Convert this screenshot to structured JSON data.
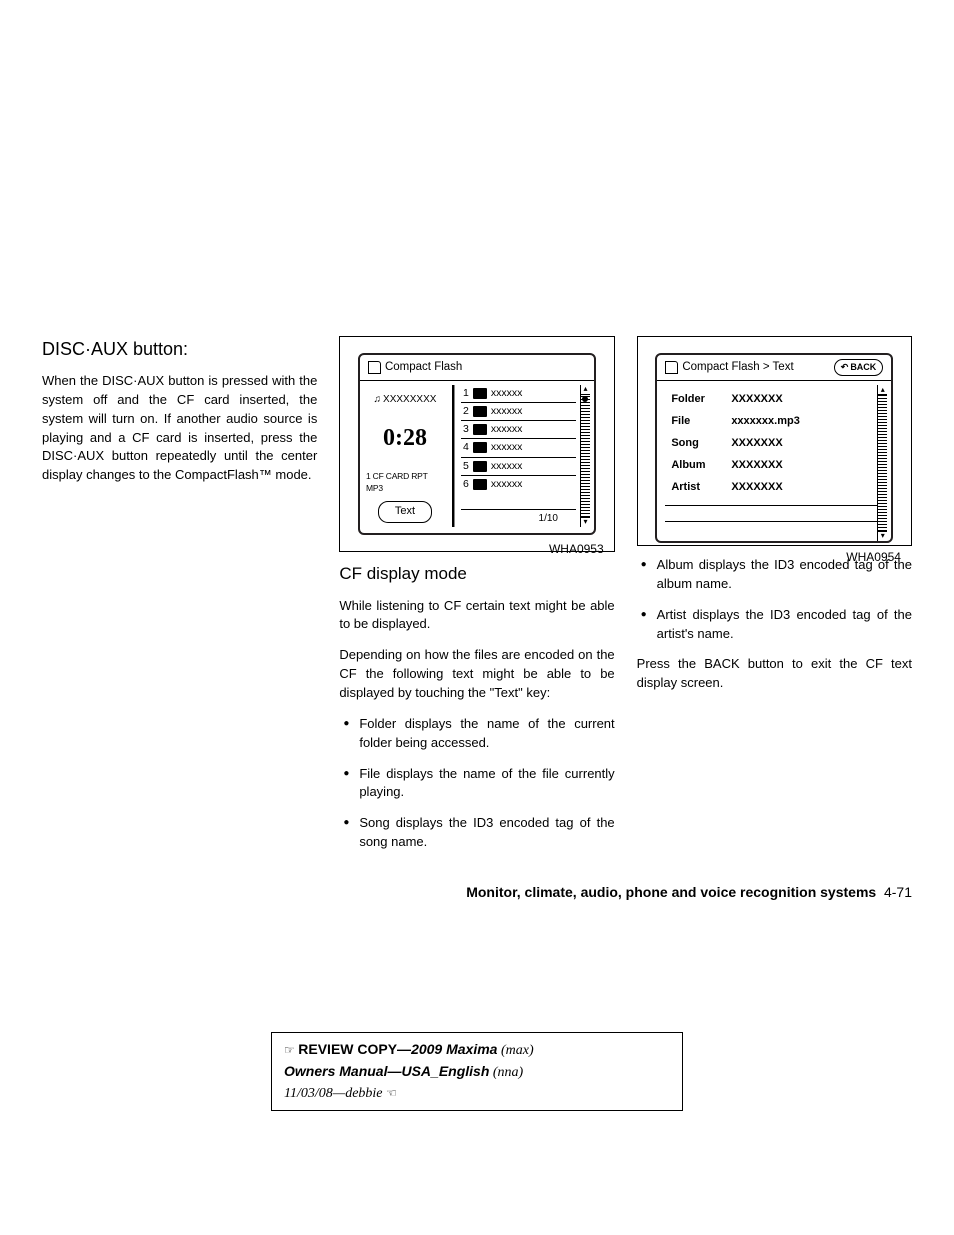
{
  "col1": {
    "heading": "DISC·AUX button:",
    "paragraph": "When the DISC·AUX button is pressed with the system off and the CF card inserted, the system will turn on. If another audio source is playing and a CF card is inserted, press the DISC·AUX button repeatedly until the center display changes to the CompactFlash™ mode."
  },
  "fig1": {
    "header_title": "Compact Flash",
    "now_playing": "XXXXXXXX",
    "time": "0:28",
    "status": "1 CF CARD RPT    MP3",
    "text_btn": "Text",
    "tracks": [
      {
        "n": "1",
        "name": "xxxxxx"
      },
      {
        "n": "2",
        "name": "xxxxxx"
      },
      {
        "n": "3",
        "name": "xxxxxx"
      },
      {
        "n": "4",
        "name": "xxxxxx"
      },
      {
        "n": "5",
        "name": "xxxxxx"
      },
      {
        "n": "6",
        "name": "xxxxxx"
      }
    ],
    "pager": "1/10",
    "label": "WHA0953"
  },
  "col2": {
    "heading": "CF display mode",
    "p1": "While listening to CF certain text might be able to be displayed.",
    "p2": "Depending on how the files are encoded on the CF the following text might be able to be displayed by touching the \"Text\" key:",
    "bullets": [
      "Folder displays the name of the current folder being accessed.",
      "File displays the name of the file currently playing.",
      "Song displays the ID3 encoded tag of the song name."
    ]
  },
  "fig2": {
    "header_title": "Compact Flash > Text",
    "back_label": "BACK",
    "rows": [
      {
        "k": "Folder",
        "v": "XXXXXXX"
      },
      {
        "k": "File",
        "v": "xxxxxxx.mp3"
      },
      {
        "k": "Song",
        "v": "XXXXXXX"
      },
      {
        "k": "Album",
        "v": "XXXXXXX"
      },
      {
        "k": "Artist",
        "v": "XXXXXXX"
      }
    ],
    "label": "WHA0954"
  },
  "col3": {
    "bullets": [
      "Album displays the ID3 encoded tag of the album name.",
      "Artist displays the ID3 encoded tag of the artist's name."
    ],
    "p1": "Press the BACK button to exit the CF text display screen."
  },
  "footer": {
    "section": "Monitor, climate, audio, phone and voice recognition systems",
    "page": "4-71"
  },
  "review": {
    "l1a": "REVIEW COPY—",
    "l1b": "2009 Maxima",
    "l1c": " (max)",
    "l2a": "Owners Manual—USA_English",
    "l2b": " (nna)",
    "l3": "11/03/08—debbie"
  }
}
